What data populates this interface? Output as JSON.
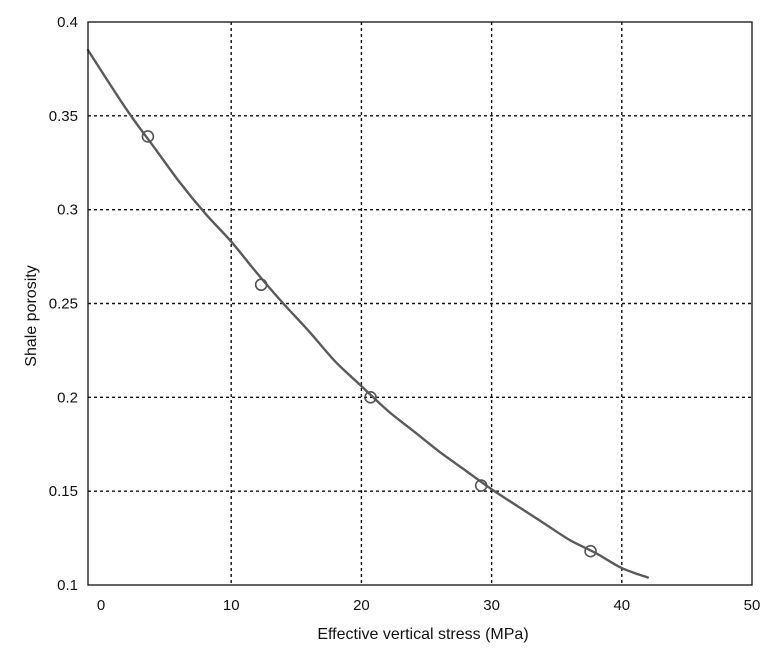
{
  "chart_data": {
    "type": "scatter",
    "title": "",
    "xlabel": "Effective vertical stress (MPa)",
    "ylabel": "Shale porosity",
    "xlim": [
      -1,
      50
    ],
    "ylim": [
      0.1,
      0.4
    ],
    "x_ticks": [
      0,
      10,
      20,
      30,
      40,
      50
    ],
    "y_ticks": [
      0.1,
      0.15,
      0.2,
      0.25,
      0.3,
      0.35,
      0.4
    ],
    "x_tick_labels": [
      "0",
      "10",
      "20",
      "30",
      "40",
      "50"
    ],
    "y_tick_labels": [
      "0.1",
      "0.15",
      "0.2",
      "0.25",
      "0.3",
      "0.35",
      "0.4"
    ],
    "grid": true,
    "grid_style": "dotted",
    "gridlines_x": [
      10,
      20,
      30,
      40
    ],
    "gridlines_y": [
      0.15,
      0.2,
      0.25,
      0.3,
      0.35
    ],
    "series": [
      {
        "kind": "points",
        "marker": "open-circle",
        "x": [
          3.6,
          12.3,
          20.7,
          29.2,
          37.6
        ],
        "y": [
          0.339,
          0.26,
          0.2,
          0.153,
          0.118
        ]
      },
      {
        "kind": "fitted-curve",
        "x": [
          -1,
          2,
          4,
          6,
          8,
          10,
          12,
          14,
          16,
          18,
          20,
          22,
          24,
          26,
          28,
          30,
          32,
          34,
          36,
          38,
          40,
          42
        ],
        "y": [
          0.385,
          0.353,
          0.334,
          0.315,
          0.298,
          0.283,
          0.266,
          0.25,
          0.235,
          0.219,
          0.206,
          0.193,
          0.182,
          0.171,
          0.161,
          0.151,
          0.142,
          0.133,
          0.124,
          0.117,
          0.109,
          0.104
        ]
      }
    ],
    "colors": {
      "curve": "#5a5a5a",
      "marker": "#555555",
      "grid": "#111111",
      "axis": "#111111"
    }
  }
}
